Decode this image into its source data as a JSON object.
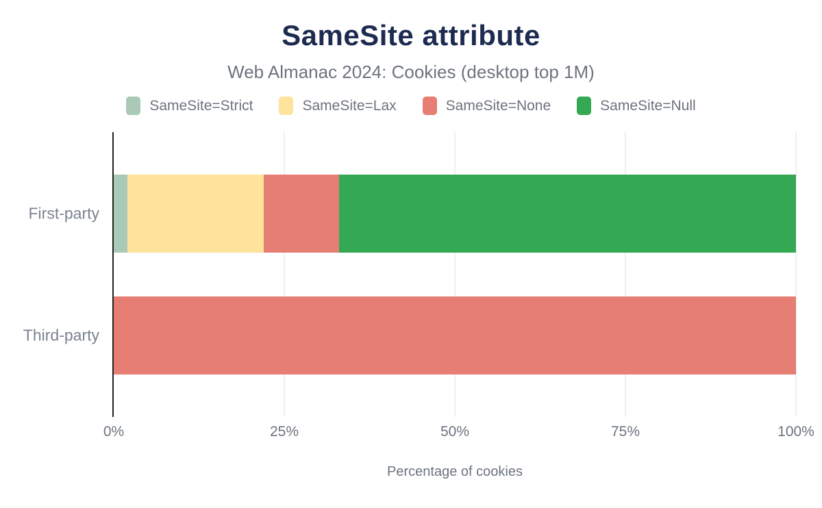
{
  "header": {
    "title": "SameSite attribute",
    "subtitle": "Web Almanac 2024: Cookies (desktop top 1M)"
  },
  "chart_data": {
    "type": "bar",
    "orientation": "horizontal",
    "stacked": true,
    "title": "SameSite attribute",
    "subtitle": "Web Almanac 2024: Cookies (desktop top 1M)",
    "categories": [
      "First-party",
      "Third-party"
    ],
    "series": [
      {
        "name": "SameSite=Strict",
        "color": "#aac9b7",
        "values": [
          2,
          0
        ]
      },
      {
        "name": "SameSite=Lax",
        "color": "#fde39b",
        "values": [
          20,
          0
        ]
      },
      {
        "name": "SameSite=None",
        "color": "#e77e74",
        "values": [
          11,
          100
        ]
      },
      {
        "name": "SameSite=Null",
        "color": "#35a853",
        "values": [
          67,
          0
        ]
      }
    ],
    "xlabel": "Percentage of cookies",
    "ylabel": "",
    "x_ticks": [
      "0%",
      "25%",
      "50%",
      "75%",
      "100%"
    ],
    "x_tick_values": [
      0,
      25,
      50,
      75,
      100
    ],
    "xlim": [
      0,
      100
    ],
    "grid": true,
    "legend_position": "top"
  },
  "style": {
    "axis_color": "#212121",
    "grid_color": "#efefef",
    "title_color": "#1e2b50",
    "text_color": "#6c737e"
  }
}
